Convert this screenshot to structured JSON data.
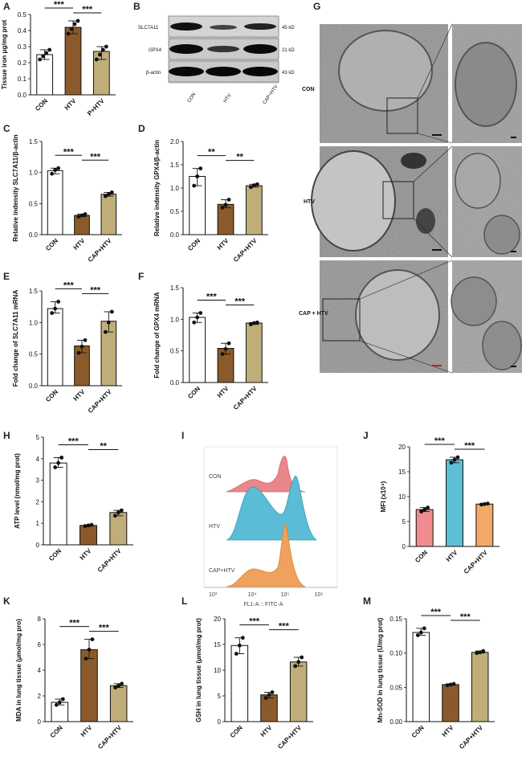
{
  "panels": {
    "A": {
      "label": "A"
    },
    "B": {
      "label": "B"
    },
    "C": {
      "label": "C"
    },
    "D": {
      "label": "D"
    },
    "E": {
      "label": "E"
    },
    "F": {
      "label": "F"
    },
    "G": {
      "label": "G"
    },
    "H": {
      "label": "H"
    },
    "I": {
      "label": "I"
    },
    "J": {
      "label": "J"
    },
    "K": {
      "label": "K"
    },
    "L": {
      "label": "L"
    },
    "M": {
      "label": "M"
    }
  },
  "western_blot": {
    "proteins": [
      {
        "name": "SLC7A11",
        "size": "45 kD"
      },
      {
        "name": "GPX4",
        "size": "21 kD"
      },
      {
        "name": "β-actin",
        "size": "43 kD"
      }
    ],
    "lanes": [
      "CON",
      "HTV",
      "CAP+HTV"
    ]
  },
  "em_panel": {
    "rows": [
      "CON",
      "HTV",
      "CAP + HTV"
    ]
  },
  "flow": {
    "samples": [
      "CON",
      "HTV",
      "CAP+HTV"
    ],
    "xlabel": "FL1-A :: FITC-A",
    "ticks": [
      "10³",
      "10⁴",
      "10⁵",
      "10⁶"
    ],
    "colors": [
      "#e8868b",
      "#5bbcd6",
      "#f0a15c"
    ]
  },
  "chart_data": [
    {
      "id": "A",
      "type": "bar",
      "categories": [
        "CON",
        "HTV",
        "P+HTV"
      ],
      "values": [
        0.25,
        0.42,
        0.27
      ],
      "ylabel": "Tissue iron μg/mg prot",
      "ylim": [
        0,
        0.5
      ],
      "yticks": [
        "0.0",
        "0.1",
        "0.2",
        "0.3",
        "0.4",
        "0.5"
      ],
      "sig": [
        "***",
        "***"
      ],
      "points": [
        [
          0.22,
          0.24,
          0.26,
          0.28
        ],
        [
          0.38,
          0.41,
          0.44,
          0.46
        ],
        [
          0.22,
          0.25,
          0.28,
          0.3
        ]
      ]
    },
    {
      "id": "C",
      "type": "bar",
      "categories": [
        "CON",
        "HTV",
        "CAP+HTV"
      ],
      "values": [
        1.03,
        0.31,
        0.65
      ],
      "ylabel": "Relative indensity SLC7A11/β-actin",
      "ylim": [
        0,
        1.5
      ],
      "yticks": [
        "0.0",
        "0.5",
        "1.0",
        "1.5"
      ],
      "sig": [
        "***",
        "***"
      ],
      "points": [
        [
          0.98,
          1.04,
          1.07
        ],
        [
          0.29,
          0.31,
          0.33
        ],
        [
          0.62,
          0.65,
          0.68
        ]
      ]
    },
    {
      "id": "D",
      "type": "bar",
      "categories": [
        "CON",
        "HTV",
        "CAP+HTV"
      ],
      "values": [
        1.25,
        0.65,
        1.05
      ],
      "ylabel": "Relative indensity GPX4/β-actin",
      "ylim": [
        0,
        2.0
      ],
      "yticks": [
        "0.0",
        "0.5",
        "1.0",
        "1.5",
        "2.0"
      ],
      "sig": [
        "**",
        "**"
      ],
      "points": [
        [
          1.05,
          1.25,
          1.42
        ],
        [
          0.58,
          0.64,
          0.75
        ],
        [
          1.02,
          1.06,
          1.08
        ]
      ]
    },
    {
      "id": "E",
      "type": "bar",
      "categories": [
        "CON",
        "HTV",
        "CAP+HTV"
      ],
      "values": [
        1.22,
        0.63,
        1.02
      ],
      "ylabel": "Fold change of SLC7A11 mRNA",
      "ylim": [
        0,
        1.5
      ],
      "yticks": [
        "0.0",
        "0.5",
        "1.0",
        "1.5"
      ],
      "sig": [
        "***",
        "***"
      ],
      "points": [
        [
          1.15,
          1.22,
          1.33
        ],
        [
          0.52,
          0.62,
          0.72
        ],
        [
          0.85,
          1.0,
          1.17
        ]
      ]
    },
    {
      "id": "F",
      "type": "bar",
      "categories": [
        "CON",
        "HTV",
        "CAP+HTV"
      ],
      "values": [
        1.03,
        0.54,
        0.94
      ],
      "ylabel": "Fold change of GPX4 mRNA",
      "ylim": [
        0,
        1.5
      ],
      "yticks": [
        "0.0",
        "0.5",
        "1.0",
        "1.5"
      ],
      "sig": [
        "***",
        "***"
      ],
      "points": [
        [
          0.95,
          1.03,
          1.1
        ],
        [
          0.45,
          0.53,
          0.62
        ],
        [
          0.92,
          0.94,
          0.95
        ]
      ]
    },
    {
      "id": "H",
      "type": "bar",
      "categories": [
        "CON",
        "HTV",
        "CAP+HTV"
      ],
      "values": [
        3.8,
        0.9,
        1.5
      ],
      "ylabel": "ATP level (nmol/mg prot)",
      "ylim": [
        0,
        5
      ],
      "yticks": [
        "0",
        "1",
        "2",
        "3",
        "4",
        "5"
      ],
      "sig": [
        "***",
        "**"
      ],
      "points": [
        [
          3.6,
          3.8,
          4.05
        ],
        [
          0.87,
          0.9,
          0.93
        ],
        [
          1.35,
          1.5,
          1.6
        ]
      ]
    },
    {
      "id": "J",
      "type": "bar",
      "categories": [
        "CON",
        "HTV",
        "CAP+HTV"
      ],
      "values": [
        7.4,
        17.4,
        8.5
      ],
      "ylabel": "MFI (x10⁴)",
      "ylim": [
        0,
        20
      ],
      "yticks": [
        "0",
        "5",
        "10",
        "15",
        "20"
      ],
      "sig": [
        "***",
        "***"
      ],
      "points": [
        [
          7.0,
          7.4,
          7.8
        ],
        [
          16.8,
          17.4,
          17.9
        ],
        [
          8.4,
          8.5,
          8.6
        ]
      ]
    },
    {
      "id": "K",
      "type": "bar",
      "categories": [
        "CON",
        "HTV",
        "CAP+HTV"
      ],
      "values": [
        1.5,
        5.6,
        2.8
      ],
      "ylabel": "MDA in lung tissue (μmol/mg pro)",
      "ylim": [
        0,
        8
      ],
      "yticks": [
        "0",
        "2",
        "4",
        "6",
        "8"
      ],
      "sig": [
        "***",
        "***"
      ],
      "points": [
        [
          1.3,
          1.5,
          1.75
        ],
        [
          4.9,
          5.6,
          6.4
        ],
        [
          2.65,
          2.8,
          2.95
        ]
      ]
    },
    {
      "id": "L",
      "type": "bar",
      "categories": [
        "CON",
        "HTV",
        "CAP+HTV"
      ],
      "values": [
        14.8,
        5.2,
        11.6
      ],
      "ylabel": "GSH in lung tissue (μmol/mg prot)",
      "ylim": [
        0,
        20
      ],
      "yticks": [
        "0",
        "5",
        "10",
        "15",
        "20"
      ],
      "sig": [
        "***",
        "***"
      ],
      "points": [
        [
          13.2,
          14.8,
          16.3
        ],
        [
          4.6,
          5.2,
          5.7
        ],
        [
          10.8,
          11.6,
          12.5
        ]
      ]
    },
    {
      "id": "M",
      "type": "bar",
      "categories": [
        "CON",
        "HTV",
        "CAP+HTV"
      ],
      "values": [
        0.13,
        0.054,
        0.101
      ],
      "ylabel": "Mn-SOD in lung tissue (U/mg prot)",
      "ylim": [
        0,
        0.15
      ],
      "yticks": [
        "0.00",
        "0.05",
        "0.10",
        "0.15"
      ],
      "sig": [
        "***",
        "***"
      ],
      "points": [
        [
          0.126,
          0.13,
          0.136
        ],
        [
          0.053,
          0.054,
          0.055
        ],
        [
          0.1,
          0.101,
          0.103
        ]
      ]
    }
  ],
  "colors": {
    "con": "#ffffff",
    "htv": "#8b5a2b",
    "cap": "#bfae7a",
    "j_con": "#f08c90",
    "j_htv": "#5cbfd6",
    "j_cap": "#f3a968"
  }
}
